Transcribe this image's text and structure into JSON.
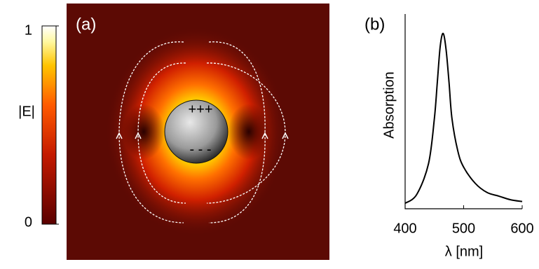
{
  "chart_data": [
    {
      "type": "field-map",
      "panel_label": "(a)",
      "charge_labels": [
        "+++",
        "- - -"
      ],
      "colorbar_label": "|E|",
      "clim": [
        0,
        1
      ],
      "cticks": [
        0,
        1
      ]
    },
    {
      "type": "line",
      "panel_label": "(b)",
      "xlabel": "λ [nm]",
      "ylabel": "Absorption",
      "x": [
        400,
        420,
        440,
        450,
        455,
        460,
        465,
        470,
        475,
        480,
        490,
        500,
        520,
        540,
        560,
        580,
        600
      ],
      "series": [
        {
          "color": "#000000",
          "values": [
            0.03,
            0.08,
            0.25,
            0.5,
            0.7,
            0.9,
            0.97,
            0.88,
            0.7,
            0.5,
            0.32,
            0.23,
            0.14,
            0.09,
            0.07,
            0.05,
            0.04
          ]
        }
      ],
      "xlim": [
        400,
        600
      ],
      "xticks": [
        400,
        500,
        600
      ],
      "ylim": [
        0,
        1
      ]
    }
  ]
}
